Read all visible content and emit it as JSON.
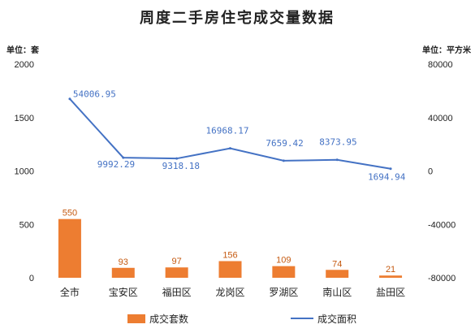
{
  "chart_data": {
    "type": "bar",
    "title": "周度二手房住宅成交量数据",
    "y_left_unit": "单位：套",
    "y_right_unit": "单位：平方米",
    "categories": [
      "全市",
      "宝安区",
      "福田区",
      "龙岗区",
      "罗湖区",
      "南山区",
      "盐田区"
    ],
    "ylim_left": [
      0,
      2000
    ],
    "yticks_left": [
      0,
      500,
      1000,
      1500,
      2000
    ],
    "ylim_right": [
      -80000,
      80000
    ],
    "yticks_right": [
      -80000,
      -40000,
      0,
      40000,
      80000
    ],
    "grid": false,
    "legend_position": "bottom",
    "series": [
      {
        "name": "成交套数",
        "type": "bar",
        "axis": "left",
        "color": "#ED7D31",
        "values": [
          550,
          93,
          97,
          156,
          109,
          74,
          21
        ],
        "labels": [
          "550",
          "93",
          "97",
          "156",
          "109",
          "74",
          "21"
        ]
      },
      {
        "name": "成交面积",
        "type": "line",
        "axis": "right",
        "color": "#4472C4",
        "values": [
          54006.95,
          9992.29,
          9318.18,
          16968.17,
          7659.42,
          8373.95,
          1694.94
        ],
        "labels": [
          "54006.95",
          "9992.29",
          "9318.18",
          "16968.17",
          "7659.42",
          "8373.95",
          "1694.94"
        ]
      }
    ]
  }
}
